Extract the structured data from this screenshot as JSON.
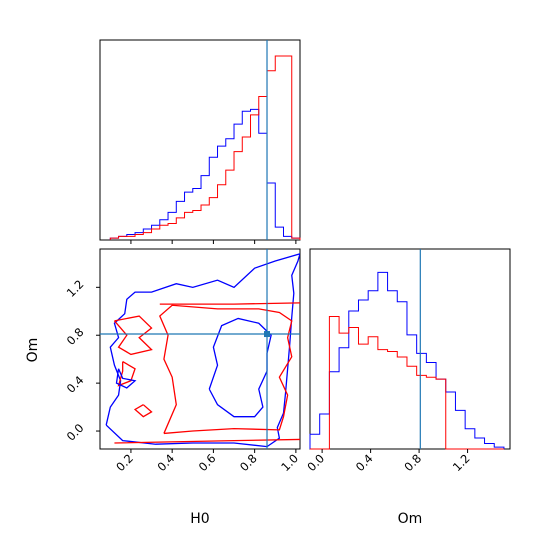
{
  "chart_data": {
    "type": "corner",
    "parameters": [
      "H0",
      "Om"
    ],
    "colors": {
      "blue": "#0000ff",
      "red": "#ff0000",
      "truth": "#1f77b4"
    },
    "truth": {
      "H0": 0.86,
      "Om": 0.81
    },
    "panels": [
      {
        "panel": "H0-hist",
        "xlim": [
          0.05,
          1.02
        ],
        "xticks": [
          0.2,
          0.4,
          0.6,
          0.8,
          1.0
        ],
        "ylim": [
          0,
          1.0
        ],
        "bin_edges": [
          0.1,
          0.14,
          0.18,
          0.22,
          0.26,
          0.3,
          0.34,
          0.38,
          0.42,
          0.46,
          0.5,
          0.54,
          0.58,
          0.62,
          0.66,
          0.7,
          0.74,
          0.78,
          0.82,
          0.86,
          0.9,
          0.94,
          0.98,
          1.02
        ],
        "series": [
          {
            "color": "blue",
            "counts": [
              0.01,
              0.02,
              0.03,
              0.04,
              0.06,
              0.08,
              0.11,
              0.15,
              0.21,
              0.26,
              0.28,
              0.35,
              0.45,
              0.51,
              0.55,
              0.63,
              0.7,
              0.71,
              0.58,
              0.31,
              0.07,
              0.02,
              0.01
            ]
          },
          {
            "color": "red",
            "counts": [
              0.01,
              0.02,
              0.02,
              0.03,
              0.04,
              0.06,
              0.08,
              0.09,
              0.12,
              0.15,
              0.16,
              0.19,
              0.23,
              0.3,
              0.38,
              0.48,
              0.56,
              0.68,
              0.78,
              0.92,
              1.0,
              1.0,
              0.01
            ]
          }
        ]
      },
      {
        "panel": "Om-hist",
        "xlim": [
          -0.1,
          1.55
        ],
        "xticks": [
          0.0,
          0.4,
          0.8,
          1.2
        ],
        "ylim": [
          0,
          1.0
        ],
        "bin_edges": [
          -0.1,
          -0.02,
          0.06,
          0.14,
          0.22,
          0.3,
          0.38,
          0.46,
          0.54,
          0.62,
          0.7,
          0.78,
          0.86,
          0.94,
          1.02,
          1.1,
          1.18,
          1.26,
          1.34,
          1.42,
          1.5
        ],
        "series": [
          {
            "color": "blue",
            "counts": [
              0.08,
              0.19,
              0.42,
              0.55,
              0.75,
              0.81,
              0.86,
              0.96,
              0.86,
              0.8,
              0.62,
              0.52,
              0.47,
              0.38,
              0.31,
              0.21,
              0.11,
              0.06,
              0.03,
              0.01
            ]
          },
          {
            "color": "red",
            "counts": [
              0.0,
              0.0,
              0.72,
              0.63,
              0.66,
              0.57,
              0.61,
              0.54,
              0.53,
              0.5,
              0.45,
              0.4,
              0.39,
              0.38,
              0.0,
              0.0,
              0.0,
              0.0,
              0.0,
              0.0
            ]
          }
        ]
      },
      {
        "panel": "H0-Om-2d",
        "xlim": [
          0.05,
          1.02
        ],
        "ylim": [
          -0.15,
          1.52
        ],
        "xticks": [
          0.2,
          0.4,
          0.6,
          0.8,
          1.0
        ],
        "yticks": [
          0.0,
          0.4,
          0.8,
          1.2
        ],
        "contours": [
          {
            "color": "blue",
            "points": [
              [
                0.08,
                0.05
              ],
              [
                0.16,
                -0.08
              ],
              [
                0.32,
                -0.11
              ],
              [
                0.5,
                -0.1
              ],
              [
                0.7,
                -0.1
              ],
              [
                0.86,
                -0.13
              ],
              [
                0.92,
                -0.06
              ],
              [
                0.91,
                0.03
              ],
              [
                0.94,
                0.15
              ],
              [
                0.95,
                0.32
              ],
              [
                0.96,
                0.52
              ],
              [
                0.97,
                0.72
              ],
              [
                0.98,
                0.95
              ],
              [
                0.99,
                1.15
              ],
              [
                0.98,
                1.3
              ],
              [
                1.01,
                1.42
              ],
              [
                1.02,
                1.48
              ],
              [
                0.9,
                1.42
              ],
              [
                0.8,
                1.36
              ],
              [
                0.7,
                1.2
              ],
              [
                0.62,
                1.26
              ],
              [
                0.5,
                1.2
              ],
              [
                0.42,
                1.23
              ],
              [
                0.3,
                1.16
              ],
              [
                0.22,
                1.16
              ],
              [
                0.18,
                1.1
              ],
              [
                0.17,
                0.98
              ],
              [
                0.12,
                0.9
              ],
              [
                0.14,
                0.78
              ],
              [
                0.1,
                0.7
              ],
              [
                0.12,
                0.55
              ],
              [
                0.15,
                0.42
              ],
              [
                0.14,
                0.3
              ],
              [
                0.1,
                0.2
              ],
              [
                0.08,
                0.05
              ]
            ]
          },
          {
            "color": "blue",
            "points": [
              [
                0.58,
                0.35
              ],
              [
                0.62,
                0.22
              ],
              [
                0.7,
                0.12
              ],
              [
                0.8,
                0.12
              ],
              [
                0.84,
                0.2
              ],
              [
                0.82,
                0.35
              ],
              [
                0.86,
                0.5
              ],
              [
                0.86,
                0.65
              ],
              [
                0.88,
                0.8
              ],
              [
                0.82,
                0.9
              ],
              [
                0.72,
                0.94
              ],
              [
                0.64,
                0.88
              ],
              [
                0.6,
                0.7
              ],
              [
                0.62,
                0.55
              ],
              [
                0.58,
                0.35
              ]
            ]
          },
          {
            "color": "red",
            "points": [
              [
                0.12,
                -0.1
              ],
              [
                0.7,
                -0.08
              ],
              [
                1.02,
                -0.07
              ]
            ]
          },
          {
            "color": "red",
            "points": [
              [
                0.34,
                1.06
              ],
              [
                0.7,
                1.06
              ],
              [
                1.02,
                1.07
              ]
            ]
          },
          {
            "color": "red",
            "points": [
              [
                0.36,
                -0.02
              ],
              [
                0.42,
                0.22
              ],
              [
                0.4,
                0.45
              ],
              [
                0.36,
                0.6
              ],
              [
                0.38,
                0.8
              ],
              [
                0.34,
                0.96
              ],
              [
                0.4,
                1.05
              ],
              [
                0.62,
                1.02
              ],
              [
                0.82,
                1.02
              ],
              [
                0.92,
                0.99
              ],
              [
                0.98,
                0.92
              ],
              [
                0.96,
                0.78
              ],
              [
                0.98,
                0.62
              ],
              [
                0.92,
                0.45
              ],
              [
                0.96,
                0.3
              ],
              [
                0.94,
                0.12
              ],
              [
                0.92,
                0.01
              ],
              [
                0.7,
                0.02
              ],
              [
                0.5,
                0.0
              ],
              [
                0.36,
                -0.02
              ]
            ]
          },
          {
            "color": "red",
            "points": [
              [
                0.12,
                0.92
              ],
              [
                0.24,
                0.96
              ],
              [
                0.3,
                0.86
              ],
              [
                0.24,
                0.78
              ],
              [
                0.3,
                0.68
              ],
              [
                0.2,
                0.64
              ],
              [
                0.14,
                0.7
              ],
              [
                0.18,
                0.8
              ],
              [
                0.12,
                0.92
              ]
            ]
          },
          {
            "color": "red",
            "points": [
              [
                0.16,
                0.58
              ],
              [
                0.22,
                0.52
              ],
              [
                0.2,
                0.42
              ],
              [
                0.14,
                0.38
              ],
              [
                0.16,
                0.5
              ],
              [
                0.16,
                0.58
              ]
            ]
          },
          {
            "color": "red",
            "points": [
              [
                0.26,
                0.22
              ],
              [
                0.3,
                0.16
              ],
              [
                0.26,
                0.12
              ],
              [
                0.22,
                0.18
              ],
              [
                0.26,
                0.22
              ]
            ]
          },
          {
            "color": "blue",
            "points": [
              [
                0.14,
                0.52
              ],
              [
                0.16,
                0.44
              ],
              [
                0.22,
                0.42
              ],
              [
                0.18,
                0.36
              ],
              [
                0.13,
                0.4
              ],
              [
                0.14,
                0.52
              ]
            ]
          }
        ]
      }
    ],
    "xlabels": [
      "H0",
      "Om"
    ],
    "ylabel": "Om"
  }
}
